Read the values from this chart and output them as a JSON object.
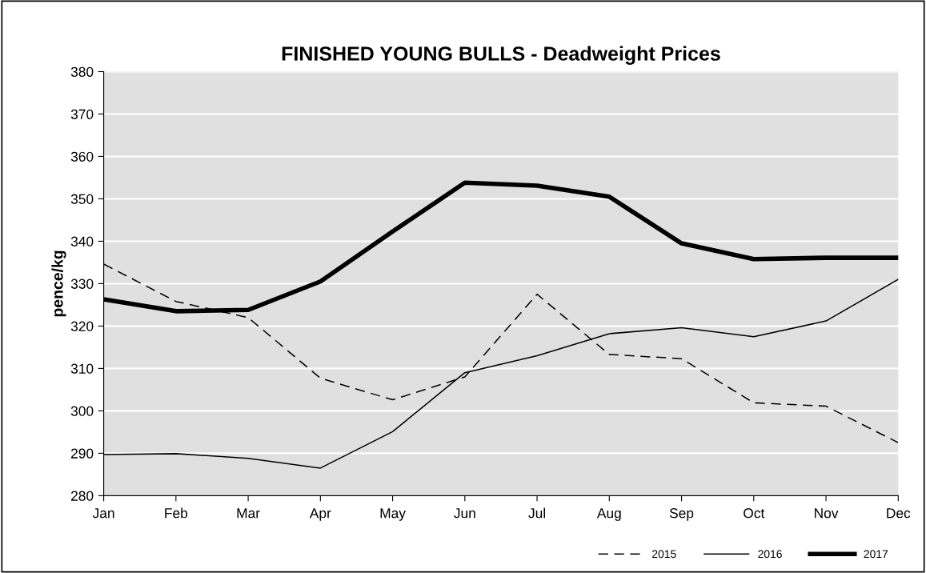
{
  "chart_data": {
    "type": "line",
    "title": "FINISHED YOUNG BULLS - Deadweight Prices",
    "ylabel": "pence/kg",
    "categories": [
      "Jan",
      "Feb",
      "Mar",
      "Apr",
      "May",
      "Jun",
      "Jul",
      "Aug",
      "Sep",
      "Oct",
      "Nov",
      "Dec"
    ],
    "series": [
      {
        "name": "2015",
        "color": "#000000",
        "line_style": "dashed",
        "values": [
          334.6,
          325.8,
          322.0,
          307.7,
          302.6,
          308.0,
          327.5,
          313.3,
          312.3,
          301.9,
          301.1,
          292.5
        ]
      },
      {
        "name": "2016",
        "color": "#000000",
        "line_style": "solid",
        "values": [
          289.7,
          289.9,
          288.8,
          286.5,
          295.1,
          309.0,
          313.0,
          318.2,
          319.6,
          317.5,
          321.2,
          331.0
        ]
      },
      {
        "name": "2017",
        "color": "#000000",
        "line_style": "solid",
        "values": [
          326.3,
          323.5,
          323.8,
          330.5,
          342.3,
          353.8,
          353.1,
          350.5,
          339.5,
          335.8,
          336.1,
          336.1
        ]
      }
    ],
    "ylim": [
      280,
      380
    ],
    "yticks": [
      280,
      290,
      300,
      310,
      320,
      330,
      340,
      350,
      360,
      370,
      380
    ],
    "grid": "y",
    "legend": "bottom right",
    "marker": "none"
  }
}
